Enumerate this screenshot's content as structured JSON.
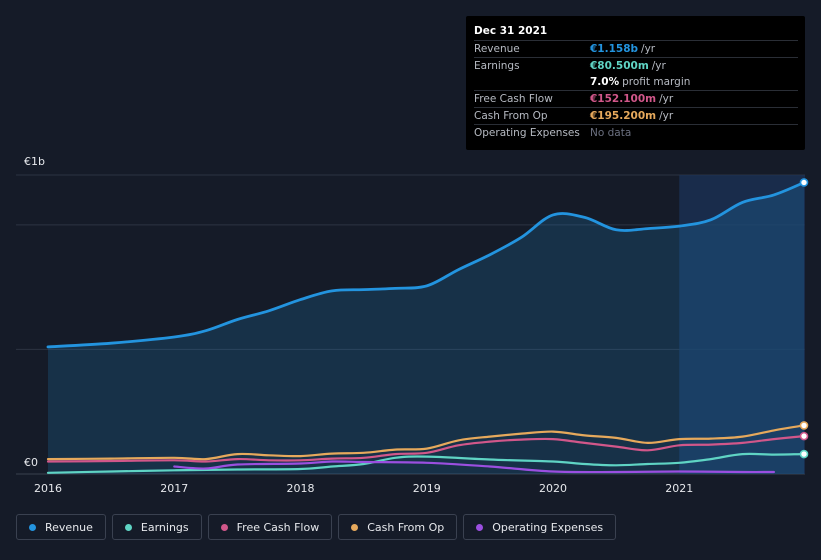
{
  "tooltip": {
    "date": "Dec 31 2021",
    "rows": [
      {
        "key": "Revenue",
        "value": "€1.158b",
        "unit": "/yr",
        "color": "#2394df"
      },
      {
        "key": "Earnings",
        "value": "€80.500m",
        "unit": "/yr",
        "color": "#5fd4c4"
      },
      {
        "key": "",
        "value": "7.0%",
        "unit": "profit margin",
        "color": "#ffffff"
      },
      {
        "key": "Free Cash Flow",
        "value": "€152.100m",
        "unit": "/yr",
        "color": "#d1578a"
      },
      {
        "key": "Cash From Op",
        "value": "€195.200m",
        "unit": "/yr",
        "color": "#e6a95c"
      },
      {
        "key": "Operating Expenses",
        "value": "No data",
        "unit": "",
        "color": "#6b7080"
      }
    ]
  },
  "legend": [
    {
      "label": "Revenue",
      "color": "#2394df"
    },
    {
      "label": "Earnings",
      "color": "#5fd4c4"
    },
    {
      "label": "Free Cash Flow",
      "color": "#d1578a"
    },
    {
      "label": "Cash From Op",
      "color": "#e6a95c"
    },
    {
      "label": "Operating Expenses",
      "color": "#9b4fe0"
    }
  ],
  "chart_data": {
    "type": "line",
    "title": "",
    "xlabel": "",
    "ylabel": "",
    "currency_unit": "€m",
    "ylim": [
      0,
      1200
    ],
    "xlim": [
      2016,
      2022.0
    ],
    "y_tick_labels": [
      "€1b",
      "€0"
    ],
    "y_tick_values": [
      1200,
      0
    ],
    "x_tick_labels": [
      "2016",
      "2017",
      "2018",
      "2019",
      "2020",
      "2021"
    ],
    "x_tick_values": [
      2016,
      2017,
      2018,
      2019,
      2020,
      2021
    ],
    "highlight_start": 2021.0,
    "series": [
      {
        "name": "Revenue",
        "color": "#2394df",
        "area": true,
        "x": [
          2016.0,
          2016.5,
          2017.0,
          2017.25,
          2017.5,
          2017.75,
          2018.0,
          2018.25,
          2018.5,
          2018.75,
          2019.0,
          2019.25,
          2019.5,
          2019.75,
          2020.0,
          2020.25,
          2020.5,
          2020.75,
          2021.0,
          2021.25,
          2021.5,
          2021.75,
          2022.0
        ],
        "values": [
          510,
          525,
          550,
          575,
          620,
          655,
          700,
          735,
          740,
          745,
          755,
          820,
          880,
          950,
          1040,
          1030,
          980,
          985,
          995,
          1020,
          1090,
          1120,
          1170
        ]
      },
      {
        "name": "Earnings",
        "color": "#5fd4c4",
        "area": false,
        "x": [
          2016.0,
          2016.5,
          2017.0,
          2017.5,
          2018.0,
          2018.25,
          2018.5,
          2018.75,
          2019.0,
          2019.5,
          2020.0,
          2020.25,
          2020.5,
          2020.75,
          2021.0,
          2021.25,
          2021.5,
          2021.75,
          2022.0
        ],
        "values": [
          5,
          10,
          15,
          18,
          20,
          30,
          40,
          65,
          70,
          58,
          50,
          40,
          35,
          40,
          45,
          60,
          80,
          78,
          80
        ]
      },
      {
        "name": "Free Cash Flow",
        "color": "#d1578a",
        "area": false,
        "x": [
          2016.0,
          2016.5,
          2017.0,
          2017.25,
          2017.5,
          2017.75,
          2018.0,
          2018.25,
          2018.5,
          2018.75,
          2019.0,
          2019.25,
          2019.5,
          2019.75,
          2020.0,
          2020.25,
          2020.5,
          2020.75,
          2021.0,
          2021.25,
          2021.5,
          2021.75,
          2022.0
        ],
        "values": [
          50,
          52,
          55,
          50,
          60,
          55,
          55,
          62,
          65,
          80,
          85,
          115,
          130,
          138,
          140,
          125,
          110,
          95,
          115,
          118,
          125,
          140,
          152
        ]
      },
      {
        "name": "Cash From Op",
        "color": "#e6a95c",
        "area": false,
        "x": [
          2016.0,
          2016.5,
          2017.0,
          2017.25,
          2017.5,
          2017.75,
          2018.0,
          2018.25,
          2018.5,
          2018.75,
          2019.0,
          2019.25,
          2019.5,
          2019.75,
          2020.0,
          2020.25,
          2020.5,
          2020.75,
          2021.0,
          2021.25,
          2021.5,
          2021.75,
          2022.0
        ],
        "values": [
          60,
          62,
          65,
          60,
          80,
          75,
          72,
          82,
          85,
          98,
          102,
          135,
          150,
          162,
          170,
          155,
          145,
          125,
          140,
          142,
          150,
          175,
          195
        ]
      },
      {
        "name": "Operating Expenses",
        "color": "#9b4fe0",
        "area": false,
        "x": [
          2017.0,
          2017.25,
          2017.5,
          2018.0,
          2018.25,
          2018.5,
          2019.0,
          2019.5,
          2020.0,
          2020.5,
          2021.0,
          2021.5,
          2021.75
        ],
        "values": [
          30,
          22,
          38,
          42,
          50,
          48,
          45,
          30,
          10,
          8,
          10,
          8,
          8
        ]
      }
    ]
  }
}
